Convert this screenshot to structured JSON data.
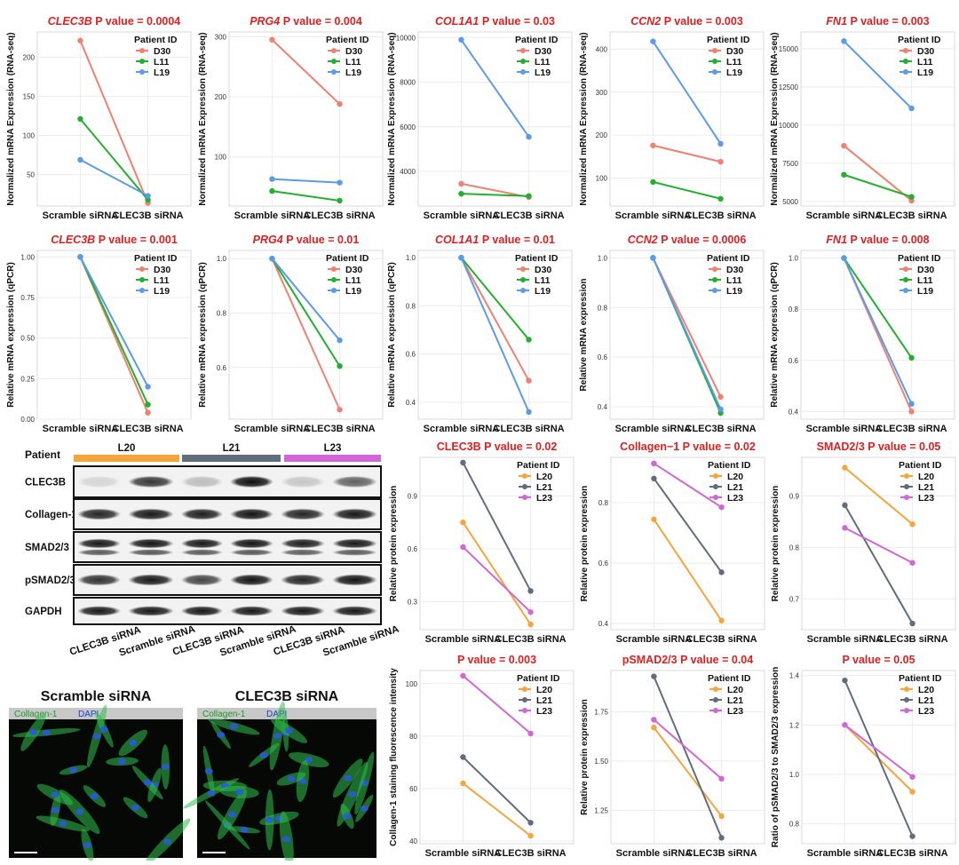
{
  "colors": {
    "D30": "#f08070",
    "L11": "#22b02e",
    "L19": "#5b9bea",
    "L20": "#f5a53a",
    "L21": "#5f6d7e",
    "L23": "#d366d6",
    "title": "#e02020"
  },
  "chart_data": [
    {
      "id": "c1",
      "type": "line",
      "gene": "CLEC3B",
      "title_rest": " P value = 0.0004",
      "ylabel": "Normalized mRNA Expression (RNA-seq)",
      "categories": [
        "Scramble siRNA",
        "CLEC3B siRNA"
      ],
      "yticks": [
        50,
        100,
        150,
        200
      ],
      "ylim": [
        10,
        232
      ],
      "legend_title": "Patient ID",
      "series": [
        {
          "name": "D30",
          "color": "#f08070",
          "values": [
            221,
            14
          ]
        },
        {
          "name": "L11",
          "color": "#22b02e",
          "values": [
            121,
            18
          ]
        },
        {
          "name": "L19",
          "color": "#5b9bea",
          "values": [
            69,
            23
          ]
        }
      ]
    },
    {
      "id": "c2",
      "type": "line",
      "gene": "PRG4",
      "title_rest": " P value = 0.004",
      "ylabel": "Normalized mRNA Expression (RNA-seq)",
      "categories": [
        "Scramble siRNA",
        "CLEC3B siRNA"
      ],
      "yticks": [
        100,
        200,
        300
      ],
      "ylim": [
        18,
        308
      ],
      "legend_title": "Patient ID",
      "series": [
        {
          "name": "D30",
          "color": "#f08070",
          "values": [
            295,
            188
          ]
        },
        {
          "name": "L11",
          "color": "#22b02e",
          "values": [
            43,
            27
          ]
        },
        {
          "name": "L19",
          "color": "#5b9bea",
          "values": [
            63,
            57
          ]
        }
      ]
    },
    {
      "id": "c3",
      "type": "line",
      "gene": "COL1A1",
      "title_rest": " P value = 0.03",
      "ylabel": "Normalized mRNA Expression (RNA-seq)",
      "categories": [
        "Scramble siRNA",
        "CLEC3B siRNA"
      ],
      "yticks": [
        4000,
        6000,
        8000,
        10000
      ],
      "ylim": [
        2450,
        10250
      ],
      "legend_title": "Patient ID",
      "series": [
        {
          "name": "D30",
          "color": "#f08070",
          "values": [
            3450,
            2850
          ]
        },
        {
          "name": "L11",
          "color": "#22b02e",
          "values": [
            3000,
            2900
          ]
        },
        {
          "name": "L19",
          "color": "#5b9bea",
          "values": [
            9900,
            5550
          ]
        }
      ]
    },
    {
      "id": "c4",
      "type": "line",
      "gene": "CCN2",
      "title_rest": " P value = 0.003",
      "ylabel": "Normalized mRNA Expression (RNA-seq)",
      "categories": [
        "Scramble siRNA",
        "CLEC3B siRNA"
      ],
      "yticks": [
        100,
        200,
        300,
        400
      ],
      "ylim": [
        35,
        440
      ],
      "legend_title": "Patient ID",
      "series": [
        {
          "name": "D30",
          "color": "#f08070",
          "values": [
            176,
            138
          ]
        },
        {
          "name": "L11",
          "color": "#22b02e",
          "values": [
            91,
            52
          ]
        },
        {
          "name": "L19",
          "color": "#5b9bea",
          "values": [
            418,
            180
          ]
        }
      ]
    },
    {
      "id": "c5",
      "type": "line",
      "gene": "FN1",
      "title_rest": " P value = 0.003",
      "ylabel": "Normalized mRNA Expression (RNA-seq)",
      "categories": [
        "Scramble siRNA",
        "CLEC3B siRNA"
      ],
      "yticks": [
        5000,
        7500,
        10000,
        12500,
        15000
      ],
      "ylim": [
        4700,
        16100
      ],
      "legend_title": "Patient ID",
      "series": [
        {
          "name": "D30",
          "color": "#f08070",
          "values": [
            8650,
            5050
          ]
        },
        {
          "name": "L11",
          "color": "#22b02e",
          "values": [
            6750,
            5300
          ]
        },
        {
          "name": "L19",
          "color": "#5b9bea",
          "values": [
            15500,
            11100
          ]
        }
      ]
    },
    {
      "id": "c6",
      "type": "line",
      "gene": "CLEC3B",
      "title_rest": " P value = 0.001",
      "ylabel": "Relative mRNA expression (qPCR)",
      "categories": [
        "Scramble siRNA",
        "CLEC3B siRNA"
      ],
      "yticks": [
        0.0,
        0.25,
        0.5,
        0.75,
        1.0
      ],
      "ytick_labels": [
        "0.00",
        "0.25",
        "0.50",
        "0.75",
        "1.00"
      ],
      "ylim": [
        0,
        1.04
      ],
      "legend_title": "Patient ID",
      "series": [
        {
          "name": "D30",
          "color": "#f08070",
          "values": [
            1.0,
            0.04
          ]
        },
        {
          "name": "L11",
          "color": "#22b02e",
          "values": [
            1.0,
            0.09
          ]
        },
        {
          "name": "L19",
          "color": "#5b9bea",
          "values": [
            1.0,
            0.2
          ]
        }
      ]
    },
    {
      "id": "c7",
      "type": "line",
      "gene": "PRG4",
      "title_rest": " P value = 0.01",
      "ylabel": "Relative mRNA expression (qPCR)",
      "categories": [
        "Scramble siRNA",
        "CLEC3B siRNA"
      ],
      "yticks": [
        0.6,
        0.8,
        1.0
      ],
      "ytick_labels": [
        "0.6",
        "0.8",
        "1.0"
      ],
      "ylim": [
        0.41,
        1.03
      ],
      "legend_title": "Patient ID",
      "series": [
        {
          "name": "D30",
          "color": "#f08070",
          "values": [
            1.0,
            0.445
          ]
        },
        {
          "name": "L11",
          "color": "#22b02e",
          "values": [
            1.0,
            0.605
          ]
        },
        {
          "name": "L19",
          "color": "#5b9bea",
          "values": [
            1.0,
            0.7
          ]
        }
      ]
    },
    {
      "id": "c8",
      "type": "line",
      "gene": "COL1A1",
      "title_rest": " P value = 0.01",
      "ylabel": "Relative mRNA expression (qPCR)",
      "categories": [
        "Scramble siRNA",
        "CLEC3B siRNA"
      ],
      "yticks": [
        0.4,
        0.6,
        0.8,
        1.0
      ],
      "ytick_labels": [
        "0.4",
        "0.6",
        "0.8",
        "1.0"
      ],
      "ylim": [
        0.33,
        1.03
      ],
      "legend_title": "Patient ID",
      "series": [
        {
          "name": "D30",
          "color": "#f08070",
          "values": [
            1.0,
            0.49
          ]
        },
        {
          "name": "L11",
          "color": "#22b02e",
          "values": [
            1.0,
            0.66
          ]
        },
        {
          "name": "L19",
          "color": "#5b9bea",
          "values": [
            1.0,
            0.36
          ]
        }
      ]
    },
    {
      "id": "c9",
      "type": "line",
      "gene": "CCN2",
      "title_rest": " P value = 0.0006",
      "ylabel": "Relative mRNA expression",
      "categories": [
        "Scramble siRNA",
        "CLEC3B siRNA"
      ],
      "yticks": [
        0.4,
        0.6,
        0.8,
        1.0
      ],
      "ytick_labels": [
        "0.4",
        "0.6",
        "0.8",
        "1.0"
      ],
      "ylim": [
        0.35,
        1.03
      ],
      "legend_title": "Patient ID",
      "series": [
        {
          "name": "D30",
          "color": "#f08070",
          "values": [
            1.0,
            0.44
          ]
        },
        {
          "name": "L11",
          "color": "#22b02e",
          "values": [
            1.0,
            0.375
          ]
        },
        {
          "name": "L19",
          "color": "#5b9bea",
          "values": [
            1.0,
            0.39
          ]
        }
      ]
    },
    {
      "id": "c10",
      "type": "line",
      "gene": "FN1",
      "title_rest": " P value = 0.008",
      "ylabel": "Relative mRNA expression (qPCR)",
      "categories": [
        "Scramble siRNA",
        "CLEC3B siRNA"
      ],
      "yticks": [
        0.4,
        0.6,
        0.8,
        1.0
      ],
      "ytick_labels": [
        "0.4",
        "0.6",
        "0.8",
        "1.0"
      ],
      "ylim": [
        0.37,
        1.03
      ],
      "legend_title": "Patient ID",
      "series": [
        {
          "name": "D30",
          "color": "#f08070",
          "values": [
            1.0,
            0.4
          ]
        },
        {
          "name": "L11",
          "color": "#22b02e",
          "values": [
            1.0,
            0.61
          ]
        },
        {
          "name": "L19",
          "color": "#5b9bea",
          "values": [
            1.0,
            0.43
          ]
        }
      ]
    },
    {
      "id": "c11",
      "type": "line",
      "gene": "",
      "title_rest": "CLEC3B P value = 0.02",
      "ylabel": "Relative protein expression",
      "categories": [
        "Scramble siRNA",
        "CLEC3B siRNA"
      ],
      "yticks": [
        0.3,
        0.6,
        0.9
      ],
      "ytick_labels": [
        "0.3",
        "0.6",
        "0.9"
      ],
      "ylim": [
        0.14,
        1.12
      ],
      "legend_title": "Patient ID",
      "series": [
        {
          "name": "L20",
          "color": "#f5a53a",
          "values": [
            0.75,
            0.17
          ]
        },
        {
          "name": "L21",
          "color": "#5f6d7e",
          "values": [
            1.09,
            0.36
          ]
        },
        {
          "name": "L23",
          "color": "#d366d6",
          "values": [
            0.61,
            0.24
          ]
        }
      ]
    },
    {
      "id": "c12",
      "type": "line",
      "gene": "",
      "title_rest": "Collagen−1 P value = 0.02",
      "ylabel": "Relative protein expression",
      "categories": [
        "Scramble siRNA",
        "CLEC3B siRNA"
      ],
      "yticks": [
        0.4,
        0.6,
        0.8
      ],
      "ytick_labels": [
        "0.4",
        "0.6",
        "0.8"
      ],
      "ylim": [
        0.38,
        0.95
      ],
      "legend_title": "Patient ID",
      "series": [
        {
          "name": "L20",
          "color": "#f5a53a",
          "values": [
            0.745,
            0.41
          ]
        },
        {
          "name": "L21",
          "color": "#5f6d7e",
          "values": [
            0.88,
            0.57
          ]
        },
        {
          "name": "L23",
          "color": "#d366d6",
          "values": [
            0.93,
            0.785
          ]
        }
      ]
    },
    {
      "id": "c13",
      "type": "line",
      "gene": "",
      "title_rest": "SMAD2/3 P value = 0.05",
      "ylabel": "Relative protein expression",
      "categories": [
        "Scramble siRNA",
        "CLEC3B siRNA"
      ],
      "yticks": [
        0.7,
        0.8,
        0.9
      ],
      "ytick_labels": [
        "0.7",
        "0.8",
        "0.9"
      ],
      "ylim": [
        0.64,
        0.975
      ],
      "legend_title": "Patient ID",
      "series": [
        {
          "name": "L20",
          "color": "#f5a53a",
          "values": [
            0.955,
            0.845
          ]
        },
        {
          "name": "L21",
          "color": "#5f6d7e",
          "values": [
            0.882,
            0.652
          ]
        },
        {
          "name": "L23",
          "color": "#d366d6",
          "values": [
            0.838,
            0.77
          ]
        }
      ]
    },
    {
      "id": "c14",
      "type": "line",
      "gene": "",
      "title_rest": "P value = 0.003",
      "ylabel": "Collagen-1 staining fluorescence intensity",
      "categories": [
        "Scramble siRNA",
        "CLEC3B siRNA"
      ],
      "yticks": [
        40,
        60,
        80,
        100
      ],
      "ylim": [
        39,
        105
      ],
      "legend_title": "Patient ID",
      "series": [
        {
          "name": "L20",
          "color": "#f5a53a",
          "values": [
            62,
            42
          ]
        },
        {
          "name": "L21",
          "color": "#5f6d7e",
          "values": [
            72,
            47
          ]
        },
        {
          "name": "L23",
          "color": "#d366d6",
          "values": [
            103,
            81
          ]
        }
      ]
    },
    {
      "id": "c15",
      "type": "line",
      "gene": "",
      "title_rest": "pSMAD2/3 P value = 0.04",
      "ylabel": "Relative protein expression",
      "categories": [
        "Scramble siRNA",
        "CLEC3B siRNA"
      ],
      "yticks": [
        1.25,
        1.5,
        1.75
      ],
      "ytick_labels": [
        "1.25",
        "1.50",
        "1.75"
      ],
      "ylim": [
        1.08,
        1.96
      ],
      "legend_title": "Patient ID",
      "series": [
        {
          "name": "L20",
          "color": "#f5a53a",
          "values": [
            1.67,
            1.22
          ]
        },
        {
          "name": "L21",
          "color": "#5f6d7e",
          "values": [
            1.93,
            1.11
          ]
        },
        {
          "name": "L23",
          "color": "#d366d6",
          "values": [
            1.71,
            1.41
          ]
        }
      ]
    },
    {
      "id": "c16",
      "type": "line",
      "gene": "",
      "title_rest": "P value = 0.05",
      "ylabel": "Ratio of pSMAD2/3 to SMAD2/3 expression",
      "categories": [
        "Scramble siRNA",
        "CLEC3B siRNA"
      ],
      "yticks": [
        0.8,
        1.0,
        1.2,
        1.4
      ],
      "ytick_labels": [
        "0.8",
        "1.0",
        "1.2",
        "1.4"
      ],
      "ylim": [
        0.72,
        1.42
      ],
      "legend_title": "Patient ID",
      "series": [
        {
          "name": "L20",
          "color": "#f5a53a",
          "values": [
            1.2,
            0.93
          ]
        },
        {
          "name": "L21",
          "color": "#5f6d7e",
          "values": [
            1.38,
            0.75
          ]
        },
        {
          "name": "L23",
          "color": "#d366d6",
          "values": [
            1.2,
            0.99
          ]
        }
      ]
    }
  ],
  "western_blot": {
    "patient_label": "Patient",
    "patients": [
      {
        "name": "L20",
        "color": "#f5a53a"
      },
      {
        "name": "L21",
        "color": "#5f6d7e"
      },
      {
        "name": "L23",
        "color": "#d366d6"
      }
    ],
    "bands": [
      "CLEC3B",
      "Collagen-1",
      "SMAD2/3",
      "pSMAD2/3",
      "GAPDH"
    ],
    "lanes": [
      "CLEC3B siRNA",
      "Scramble siRNA",
      "CLEC3B siRNA",
      "Scramble siRNA",
      "CLEC3B siRNA",
      "Scramble siRNA"
    ],
    "intensities": [
      [
        0.12,
        0.78,
        0.22,
        0.95,
        0.18,
        0.6
      ],
      [
        0.85,
        0.9,
        0.88,
        0.92,
        0.85,
        0.9
      ],
      [
        0.9,
        0.92,
        0.9,
        0.92,
        0.88,
        0.9
      ],
      [
        0.8,
        0.9,
        0.72,
        0.92,
        0.85,
        0.92
      ],
      [
        0.9,
        0.9,
        0.9,
        0.9,
        0.9,
        0.9
      ]
    ]
  },
  "if_images": [
    {
      "title": "Scramble siRNA",
      "stain1": "Collagen-1",
      "stain2": "DAPI"
    },
    {
      "title": "CLEC3B siRNA",
      "stain1": "Collagen-1",
      "stain2": "DAPI"
    }
  ]
}
